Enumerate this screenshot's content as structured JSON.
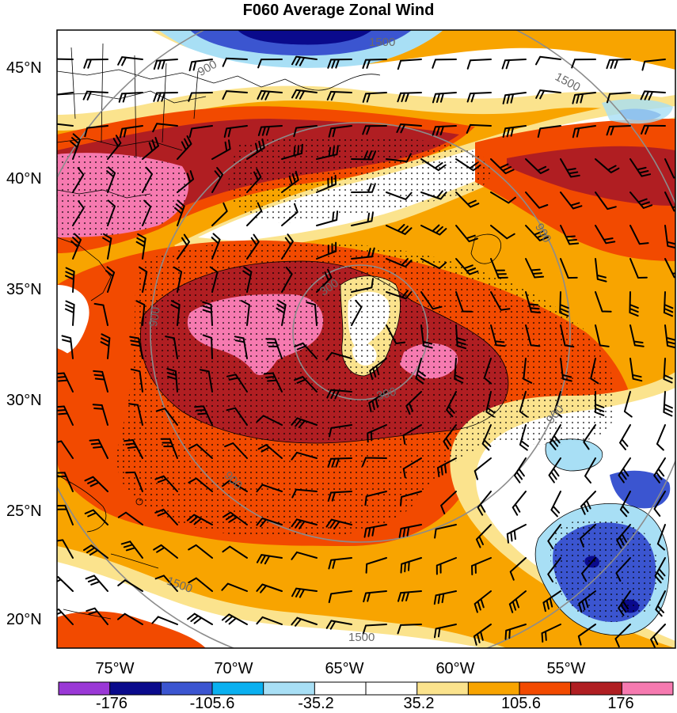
{
  "title": "F060 Average Zonal Wind",
  "lat_labels": [
    "45°N",
    "40°N",
    "35°N",
    "30°N",
    "25°N",
    "20°N"
  ],
  "lon_labels": [
    "75°W",
    "70°W",
    "65°W",
    "60°W",
    "55°W"
  ],
  "contour_labels": [
    "1500",
    "1500",
    "1500",
    "1500",
    "900",
    "900",
    "900",
    "900",
    "900",
    "300",
    "300"
  ],
  "colorbar": {
    "colors": [
      "#9a38d6",
      "#0a0a8c",
      "#3b55d0",
      "#0ab0f0",
      "#a8dff5",
      "#ffffff",
      "#ffffff",
      "#fbe38d",
      "#f8a400",
      "#f24a00",
      "#b01e22",
      "#f67ab0"
    ],
    "tick_labels": [
      "-176",
      "-105.6",
      "-35.2",
      "35.2",
      "105.6",
      "176"
    ]
  }
}
